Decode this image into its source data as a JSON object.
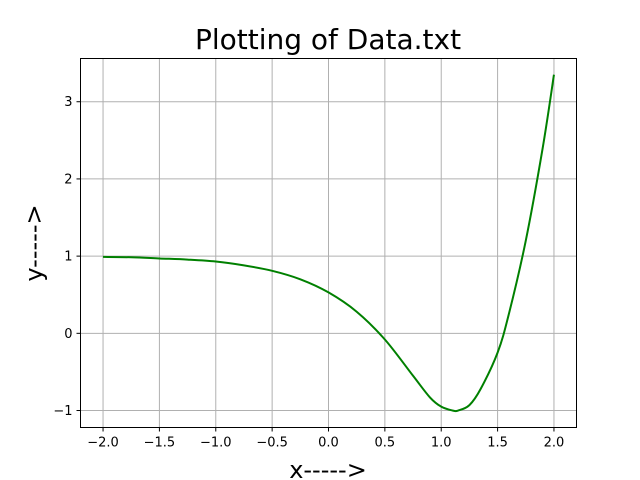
{
  "chart_data": {
    "type": "line",
    "title": "Plotting of Data.txt",
    "xlabel": "x----->",
    "ylabel": "y----->",
    "xlim": [
      -2.2,
      2.2
    ],
    "ylim": [
      -1.22,
      3.56
    ],
    "grid": true,
    "xticks": [
      -2.0,
      -1.5,
      -1.0,
      -0.5,
      0.0,
      0.5,
      1.0,
      1.5,
      2.0
    ],
    "xtick_labels": [
      "−2.0",
      "−1.5",
      "−1.0",
      "−0.5",
      "0.0",
      "0.5",
      "1.0",
      "1.5",
      "2.0"
    ],
    "yticks": [
      -1,
      0,
      1,
      2,
      3
    ],
    "ytick_labels": [
      "−1",
      "0",
      "1",
      "2",
      "3"
    ],
    "series": [
      {
        "color": "#008000",
        "x": [
          -2.0,
          -1.75,
          -1.5,
          -1.25,
          -1.0,
          -0.75,
          -0.5,
          -0.25,
          0.0,
          0.25,
          0.5,
          0.75,
          0.9,
          1.0,
          1.1,
          1.15,
          1.25,
          1.35,
          1.5,
          1.6,
          1.75,
          1.9,
          2.0
        ],
        "y": [
          0.99,
          0.985,
          0.97,
          0.955,
          0.93,
          0.88,
          0.81,
          0.7,
          0.53,
          0.28,
          -0.08,
          -0.55,
          -0.83,
          -0.95,
          -1.0,
          -1.0,
          -0.93,
          -0.72,
          -0.25,
          0.25,
          1.2,
          2.4,
          3.35
        ]
      }
    ]
  }
}
